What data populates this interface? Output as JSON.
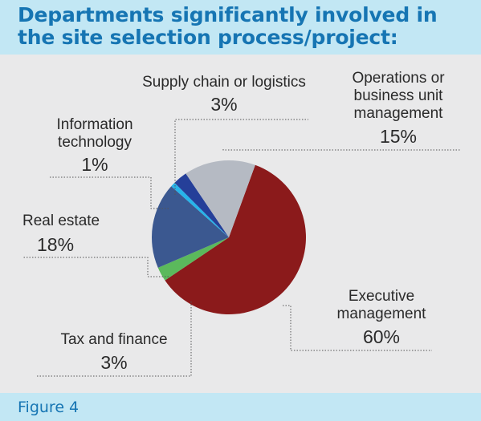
{
  "title": "Departments significantly involved in the site selection process/project:",
  "figure_label": "Figure 4",
  "colors": {
    "header_bg": "#c2e7f4",
    "panel_bg": "#e9e9ea",
    "title_text": "#1675b3"
  },
  "chart_data": {
    "type": "pie",
    "title": "Departments significantly involved in the site selection process/project:",
    "unit": "%",
    "slices": [
      {
        "key": "executive",
        "label_lines": [
          "Executive",
          "management"
        ],
        "value": 60,
        "value_label": "60%",
        "color": "#8b1a1b"
      },
      {
        "key": "tax",
        "label_lines": [
          "Tax and finance"
        ],
        "value": 3,
        "value_label": "3%",
        "color": "#5bb95c"
      },
      {
        "key": "realestate",
        "label_lines": [
          "Real estate"
        ],
        "value": 18,
        "value_label": "18%",
        "color": "#3b5890"
      },
      {
        "key": "it",
        "label_lines": [
          "Information",
          "technology"
        ],
        "value": 1,
        "value_label": "1%",
        "color": "#27b4ea"
      },
      {
        "key": "supply",
        "label_lines": [
          "Supply chain or logistics"
        ],
        "value": 3,
        "value_label": "3%",
        "color": "#253f99"
      },
      {
        "key": "operations",
        "label_lines": [
          "Operations or",
          "business unit",
          "management"
        ],
        "value": 15,
        "value_label": "15%",
        "color": "#b5bac3"
      }
    ]
  }
}
